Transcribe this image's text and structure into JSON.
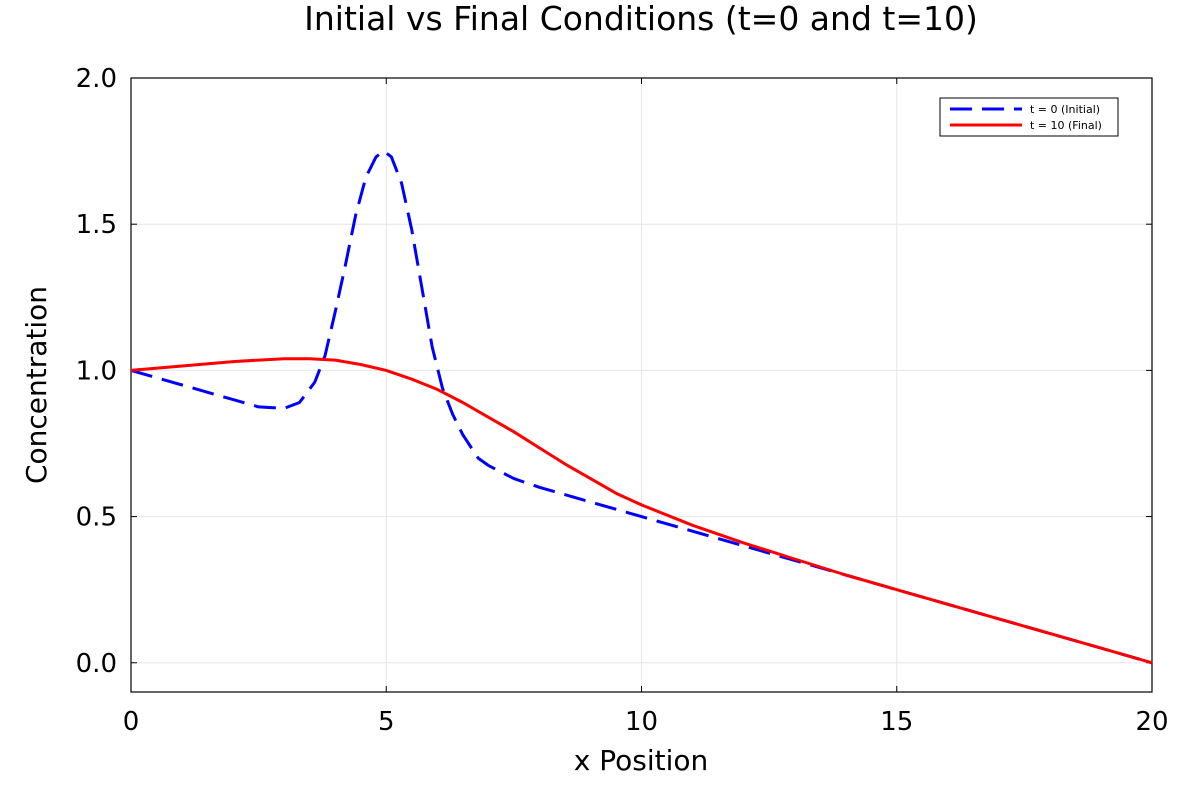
{
  "chart_data": {
    "type": "line",
    "title": "Initial vs Final Conditions (t=0 and t=10)",
    "xlabel": "x Position",
    "ylabel": "Concentration",
    "xlim": [
      0,
      20
    ],
    "ylim": [
      -0.1,
      2.0
    ],
    "xticks": [
      0,
      5,
      10,
      15,
      20
    ],
    "xtick_labels": [
      "0",
      "5",
      "10",
      "15",
      "20"
    ],
    "yticks": [
      0.0,
      0.5,
      1.0,
      1.5,
      2.0
    ],
    "ytick_labels": [
      "0.0",
      "0.5",
      "1.0",
      "1.5",
      "2.0"
    ],
    "grid": true,
    "legend_position": "top-right",
    "series": [
      {
        "name": "t = 0 (Initial)",
        "color": "#0000ff",
        "style": "dashed",
        "x": [
          0,
          0.5,
          1,
          1.5,
          2,
          2.5,
          3,
          3.3,
          3.6,
          3.8,
          4.0,
          4.2,
          4.4,
          4.6,
          4.8,
          4.95,
          5.1,
          5.3,
          5.5,
          5.7,
          5.9,
          6.1,
          6.3,
          6.5,
          6.8,
          7.0,
          7.5,
          8,
          9,
          10,
          11,
          12,
          13,
          14,
          15,
          16,
          17,
          18,
          19,
          20
        ],
        "y": [
          1.0,
          0.975,
          0.95,
          0.925,
          0.9,
          0.875,
          0.87,
          0.89,
          0.96,
          1.05,
          1.2,
          1.36,
          1.53,
          1.66,
          1.73,
          1.75,
          1.73,
          1.64,
          1.48,
          1.28,
          1.08,
          0.94,
          0.85,
          0.78,
          0.7,
          0.675,
          0.63,
          0.6,
          0.55,
          0.5,
          0.45,
          0.4,
          0.35,
          0.3,
          0.25,
          0.2,
          0.15,
          0.1,
          0.05,
          0.0
        ]
      },
      {
        "name": "t = 10 (Final)",
        "color": "#ff0000",
        "style": "solid",
        "x": [
          0,
          1,
          2,
          2.5,
          3,
          3.5,
          4,
          4.5,
          5,
          5.5,
          6,
          6.5,
          7,
          7.5,
          8,
          8.5,
          9,
          9.5,
          10,
          11,
          12,
          13,
          14,
          15,
          16,
          17,
          18,
          19,
          20
        ],
        "y": [
          1.0,
          1.015,
          1.03,
          1.035,
          1.04,
          1.04,
          1.035,
          1.02,
          1.0,
          0.97,
          0.935,
          0.89,
          0.84,
          0.79,
          0.735,
          0.68,
          0.63,
          0.58,
          0.54,
          0.47,
          0.41,
          0.355,
          0.3,
          0.25,
          0.2,
          0.15,
          0.1,
          0.05,
          0.0
        ]
      }
    ]
  }
}
